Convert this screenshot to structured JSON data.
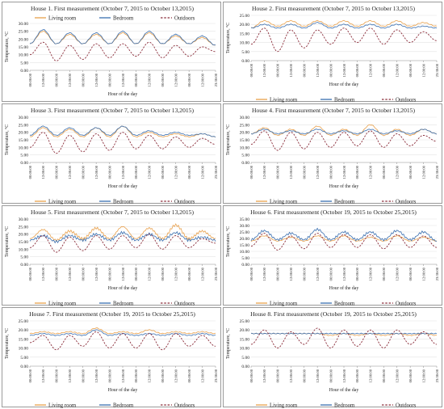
{
  "shared": {
    "ylabel": "Temperature, °C",
    "xlabel": "Hour of the day",
    "x_ticks": [
      "00:00:00",
      "12:00:00",
      "00:00:00",
      "12:00:00",
      "00:00:00",
      "12:00:00",
      "00:00:00",
      "12:00:00",
      "00:00:00",
      "12:00:00",
      "00:00:00",
      "12:00:00",
      "00:00:00",
      "12:00:00",
      "23:30:00"
    ],
    "legend": [
      "Living room",
      "Bedroom",
      "Outdoors"
    ],
    "colors": {
      "living": "#E8A04C",
      "bedroom": "#3A6FB0",
      "outdoors": "#8B2E3B"
    }
  },
  "chart_data": [
    {
      "type": "line",
      "title": "House 1. First measurement (October 7, 2015 to October 13,2015)",
      "ylim": [
        0,
        30
      ],
      "yticks": [
        "0.00",
        "5.00",
        "10.00",
        "15.00",
        "20.00",
        "25.00",
        "30.00"
      ],
      "xlabel": "Hour of the day",
      "ylabel": "Temperature, °C",
      "legend": "top",
      "x_days": [
        0,
        0.5,
        1,
        1.5,
        2,
        2.5,
        3,
        3.5,
        4,
        4.5,
        5,
        5.5,
        6,
        6.5,
        7
      ],
      "series": [
        {
          "name": "Living room",
          "values": [
            17,
            25,
            17,
            23,
            17,
            23,
            17,
            24,
            17,
            24,
            17,
            22,
            17,
            21,
            16
          ]
        },
        {
          "name": "Bedroom",
          "values": [
            17,
            26,
            17,
            24,
            17,
            24,
            17,
            25,
            17,
            25,
            17,
            23,
            17,
            22,
            16
          ]
        },
        {
          "name": "Outdoors",
          "values": [
            10,
            18,
            6,
            16,
            7,
            17,
            8,
            17,
            9,
            18,
            8,
            16,
            9,
            15,
            12
          ]
        }
      ]
    },
    {
      "type": "line",
      "title": "House 2. First measurement (October 7, 2015 to October 13,2015)",
      "ylim": [
        0,
        25
      ],
      "yticks": [
        "0.00",
        "5.00",
        "10.00",
        "15.00",
        "20.00",
        "25.00"
      ],
      "xlabel": "Hour of the day",
      "ylabel": "Temperature, °C",
      "legend": "bottom",
      "x_days": [
        0,
        0.5,
        1,
        1.5,
        2,
        2.5,
        3,
        3.5,
        4,
        4.5,
        5,
        5.5,
        6,
        6.5,
        7
      ],
      "series": [
        {
          "name": "Living room",
          "values": [
            18,
            22,
            19,
            22,
            19,
            22,
            19,
            22,
            19,
            22,
            19,
            22,
            19,
            21,
            19
          ]
        },
        {
          "name": "Bedroom",
          "values": [
            18,
            20,
            18,
            20,
            18,
            21,
            18,
            20,
            18,
            20,
            18,
            20,
            18,
            19,
            18
          ]
        },
        {
          "name": "Outdoors",
          "values": [
            9,
            18,
            5,
            17,
            7,
            17,
            9,
            18,
            10,
            18,
            9,
            17,
            10,
            16,
            11
          ]
        }
      ]
    },
    {
      "type": "line",
      "title": "House 3. First measurement (October 7, 2015 to October 13,2015)",
      "ylim": [
        0,
        30
      ],
      "yticks": [
        "0.00",
        "5.00",
        "10.00",
        "15.00",
        "20.00",
        "25.00",
        "30.00"
      ],
      "xlabel": "Hour of the day",
      "ylabel": "Temperature, °C",
      "legend": "bottom",
      "x_days": [
        0,
        0.5,
        1,
        1.5,
        2,
        2.5,
        3,
        3.5,
        4,
        4.5,
        5,
        5.5,
        6,
        6.5,
        7
      ],
      "series": [
        {
          "name": "Living room",
          "values": [
            17,
            23,
            17,
            22,
            17,
            23,
            17,
            24,
            17,
            20,
            17,
            19,
            17,
            19,
            17
          ]
        },
        {
          "name": "Bedroom",
          "values": [
            18,
            24,
            18,
            23,
            18,
            23,
            18,
            24,
            18,
            21,
            18,
            20,
            18,
            19,
            17
          ]
        },
        {
          "name": "Outdoors",
          "values": [
            10,
            20,
            6,
            18,
            7,
            19,
            8,
            20,
            9,
            18,
            9,
            17,
            10,
            16,
            12
          ]
        }
      ]
    },
    {
      "type": "line",
      "title": "House 4. First measurement (October 7, 2015 to October 13,2015)",
      "ylim": [
        0,
        30
      ],
      "yticks": [
        "0.00",
        "5.00",
        "10.00",
        "15.00",
        "20.00",
        "25.00",
        "30.00"
      ],
      "xlabel": "Hour of the day",
      "ylabel": "Temperature, °C",
      "legend": "bottom",
      "x_days": [
        0,
        0.5,
        1,
        1.5,
        2,
        2.5,
        3,
        3.5,
        4,
        4.5,
        5,
        5.5,
        6,
        6.5,
        7
      ],
      "series": [
        {
          "name": "Living room",
          "values": [
            19,
            23,
            18,
            22,
            18,
            24,
            18,
            22,
            18,
            25,
            18,
            22,
            18,
            22,
            19
          ]
        },
        {
          "name": "Bedroom",
          "values": [
            19,
            22,
            19,
            21,
            19,
            22,
            19,
            21,
            19,
            22,
            19,
            21,
            19,
            22,
            19
          ]
        },
        {
          "name": "Outdoors",
          "values": [
            12,
            21,
            8,
            20,
            9,
            20,
            10,
            20,
            11,
            21,
            10,
            19,
            11,
            18,
            14
          ]
        }
      ]
    },
    {
      "type": "line",
      "title": "House 5. First measurement (October 7, 2015 to October 13,2015)",
      "ylim": [
        0,
        30
      ],
      "yticks": [
        "0.00",
        "5.00",
        "10.00",
        "15.00",
        "20.00",
        "25.00",
        "30.00"
      ],
      "xlabel": "Hour of the day",
      "ylabel": "Temperature, °C",
      "legend": "bottom",
      "x_days": [
        0,
        0.5,
        1,
        1.5,
        2,
        2.5,
        3,
        3.5,
        4,
        4.5,
        5,
        5.5,
        6,
        6.5,
        7
      ],
      "series": [
        {
          "name": "Living room",
          "values": [
            17,
            23,
            16,
            22,
            17,
            24,
            17,
            25,
            17,
            24,
            17,
            26,
            17,
            22,
            17
          ]
        },
        {
          "name": "Bedroom",
          "values": [
            16,
            19,
            15,
            19,
            16,
            20,
            16,
            21,
            16,
            20,
            16,
            21,
            16,
            18,
            16
          ]
        },
        {
          "name": "Outdoors",
          "values": [
            11,
            19,
            8,
            18,
            9,
            19,
            10,
            19,
            11,
            20,
            10,
            19,
            11,
            17,
            14
          ]
        }
      ]
    },
    {
      "type": "line",
      "title": "House 6. First measurement (October 19, 2015 to October 25,2015)",
      "ylim": [
        0,
        35
      ],
      "yticks": [
        "0.00",
        "5.00",
        "10.00",
        "15.00",
        "20.00",
        "25.00",
        "30.00",
        "35.00"
      ],
      "xlabel": "Hour of the day",
      "ylabel": "Temperature, °C",
      "legend": "bottom",
      "x_days": [
        0,
        0.5,
        1,
        1.5,
        2,
        2.5,
        3,
        3.5,
        4,
        4.5,
        5,
        5.5,
        6,
        6.5,
        7
      ],
      "series": [
        {
          "name": "Living room",
          "values": [
            18,
            22,
            18,
            21,
            18,
            22,
            18,
            22,
            18,
            21,
            18,
            22,
            18,
            21,
            18
          ]
        },
        {
          "name": "Bedroom",
          "values": [
            19,
            26,
            19,
            24,
            19,
            27,
            19,
            25,
            19,
            25,
            19,
            26,
            19,
            25,
            18
          ]
        },
        {
          "name": "Outdoors",
          "values": [
            14,
            24,
            11,
            22,
            12,
            24,
            13,
            23,
            13,
            23,
            12,
            23,
            13,
            22,
            13
          ]
        }
      ]
    },
    {
      "type": "line",
      "title": "House 7. First measurement (October 19, 2015 to October 25,2015)",
      "ylim": [
        0,
        25
      ],
      "yticks": [
        "0.00",
        "5.00",
        "10.00",
        "15.00",
        "20.00",
        "25.00"
      ],
      "xlabel": "Hour of the day",
      "ylabel": "Temperature, °C",
      "legend": "bottom",
      "x_days": [
        0,
        0.5,
        1,
        1.5,
        2,
        2.5,
        3,
        3.5,
        4,
        4.5,
        5,
        5.5,
        6,
        6.5,
        7
      ],
      "series": [
        {
          "name": "Living room",
          "values": [
            18,
            19,
            18,
            19,
            18,
            21,
            18,
            19,
            18,
            20,
            18,
            19,
            18,
            19,
            18
          ]
        },
        {
          "name": "Bedroom",
          "values": [
            17,
            18,
            17,
            18,
            17,
            20,
            17,
            18,
            17,
            18,
            17,
            18,
            17,
            18,
            17
          ]
        },
        {
          "name": "Outdoors",
          "values": [
            13,
            17,
            9,
            17,
            11,
            19,
            10,
            18,
            10,
            18,
            9,
            18,
            11,
            17,
            11
          ]
        }
      ]
    },
    {
      "type": "line",
      "title": "House 8. First measurement (October 19, 2015 to October 25,2015)",
      "ylim": [
        0,
        25
      ],
      "yticks": [
        "0.00",
        "5.00",
        "10.00",
        "15.00",
        "20.00",
        "25.00"
      ],
      "xlabel": "Hour of the day",
      "ylabel": "Temperature, °C",
      "legend": "bottom",
      "x_days": [
        0,
        0.5,
        1,
        1.5,
        2,
        2.5,
        3,
        3.5,
        4,
        4.5,
        5,
        5.5,
        6,
        6.5,
        7
      ],
      "series": [
        {
          "name": "Living room",
          "values": [
            18,
            18,
            18,
            18,
            18,
            18,
            17,
            18,
            17,
            18,
            17,
            18,
            17,
            18,
            17
          ]
        },
        {
          "name": "Bedroom",
          "values": [
            18,
            18,
            18,
            18,
            18,
            18,
            18,
            18,
            18,
            18,
            18,
            18,
            18,
            18,
            18
          ]
        },
        {
          "name": "Outdoors",
          "values": [
            12,
            20,
            10,
            19,
            12,
            21,
            10,
            20,
            11,
            20,
            10,
            20,
            12,
            19,
            12
          ]
        }
      ]
    }
  ]
}
